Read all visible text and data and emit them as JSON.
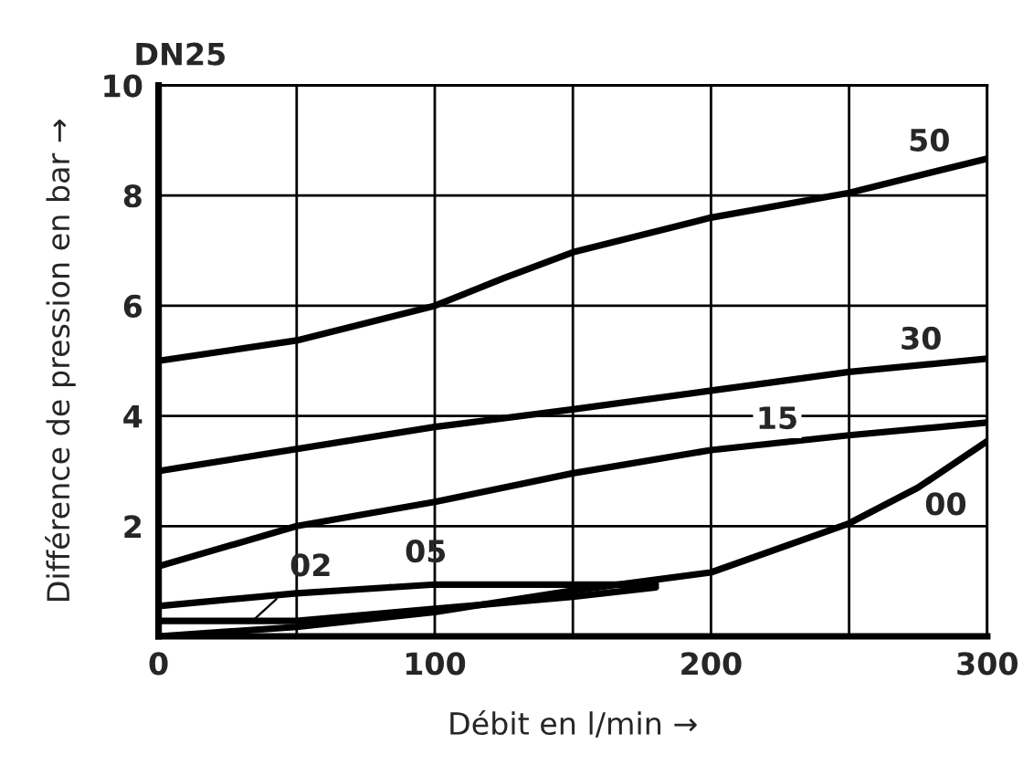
{
  "chart_data": {
    "type": "line",
    "title": "DN25",
    "xlabel": "Débit en l/min →",
    "ylabel": "Différence de pression en bar →",
    "xlim": [
      0,
      300
    ],
    "xticks": [
      0,
      {
        "value": 50,
        "label": null
      },
      100,
      {
        "value": 150,
        "label": null
      },
      200,
      {
        "value": 250,
        "label": null
      },
      300
    ],
    "ylim": [
      0,
      10
    ],
    "yticks": [
      {
        "value": 0,
        "label": null
      },
      2,
      4,
      6,
      8,
      10
    ],
    "grid": true,
    "legend": false,
    "marker": "none",
    "line_style": "solid",
    "series": [
      {
        "color": "#000000",
        "x": [
          0,
          50,
          100,
          125,
          150,
          200,
          250,
          300
        ],
        "values": [
          5.0,
          5.37,
          6.0,
          6.5,
          6.97,
          7.6,
          8.05,
          8.67
        ]
      },
      {
        "color": "#000000",
        "x": [
          0,
          100,
          150,
          200,
          250,
          300
        ],
        "values": [
          3.0,
          3.8,
          4.12,
          4.46,
          4.8,
          5.04
        ]
      },
      {
        "color": "#000000",
        "x": [
          0,
          50,
          100,
          150,
          200,
          250,
          300
        ],
        "values": [
          1.27,
          2.0,
          2.44,
          2.96,
          3.38,
          3.65,
          3.88
        ]
      },
      {
        "color": "#000000",
        "x": [
          0,
          50,
          100,
          150,
          200,
          250,
          275,
          300
        ],
        "values": [
          0.0,
          0.17,
          0.44,
          0.83,
          1.16,
          2.05,
          2.7,
          3.54
        ]
      },
      {
        "color": "#000000",
        "x": [
          0,
          50,
          100,
          150,
          180
        ],
        "values": [
          0.55,
          0.78,
          0.94,
          0.94,
          0.94
        ]
      },
      {
        "color": "#000000",
        "x": [
          0,
          50,
          100,
          150,
          180
        ],
        "values": [
          0.28,
          0.28,
          0.5,
          0.72,
          0.89
        ]
      }
    ],
    "annotations": [
      {
        "text": "50",
        "x": 279,
        "y": 8.5
      },
      {
        "text": "30",
        "x": 276,
        "y": 4.95
      },
      {
        "text": "15",
        "x": 224,
        "y": 3.55
      },
      {
        "text": "00",
        "x": 285,
        "y": 3.0
      },
      {
        "text": "05",
        "x": 83,
        "y": 0.9
      },
      {
        "text": "02",
        "x": 34,
        "y": 0.28
      }
    ]
  }
}
